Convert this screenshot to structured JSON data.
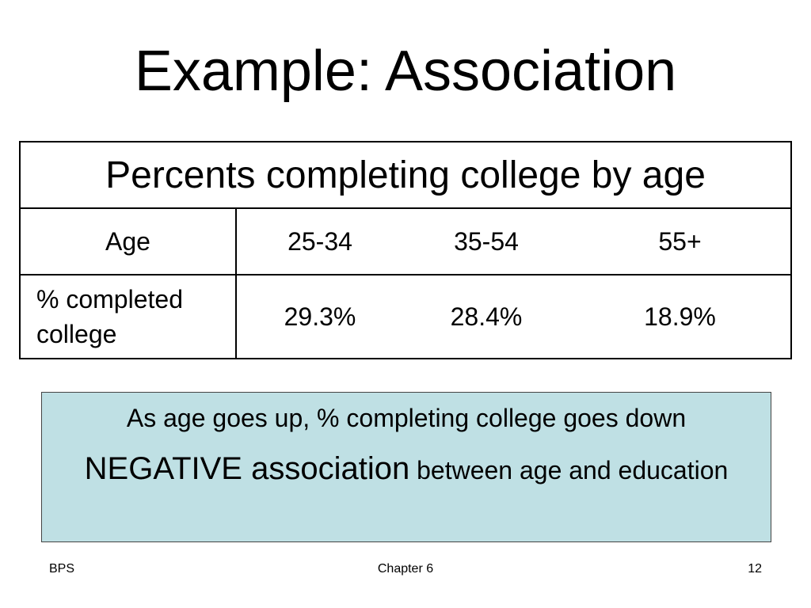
{
  "title": "Example: Association",
  "table": {
    "caption": "Percents completing college by age",
    "age_label": "Age",
    "age_groups": [
      "25-34",
      "35-54",
      "55+"
    ],
    "pct_label": "% completed college",
    "pct_values": [
      "29.3%",
      "28.4%",
      "18.9%"
    ]
  },
  "note": {
    "line1": "As age goes up, % completing college goes down",
    "emphasis": "NEGATIVE association",
    "rest": " between age and education"
  },
  "footer": {
    "left": "BPS",
    "center": "Chapter 6",
    "right": "12"
  }
}
